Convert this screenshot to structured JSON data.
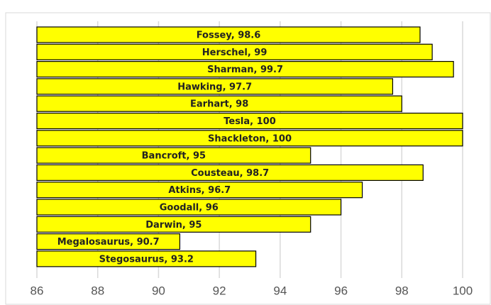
{
  "chart_data": {
    "type": "barh",
    "values": [
      98.6,
      99,
      99.7,
      97.7,
      98,
      100,
      100,
      95,
      98.7,
      96.7,
      96,
      95,
      90.7,
      93.2
    ],
    "value_labels": [
      "Fossey, 98.6",
      "Herschel, 99",
      "Sharman, 99.7",
      "Hawking, 97.7",
      "Earhart, 98",
      "Tesla, 100",
      "Shackleton, 100",
      "Bancroft, 95",
      "Cousteau, 98.7",
      "Atkins, 96.7",
      "Goodall, 96",
      "Darwin, 95",
      "Megalosaurus, 90.7",
      "Stegosaurus, 93.2"
    ],
    "color": "#ffff00",
    "xlim": [
      86,
      100
    ],
    "xticks": [
      86,
      88,
      90,
      92,
      94,
      96,
      98,
      100
    ],
    "grid": true
  }
}
